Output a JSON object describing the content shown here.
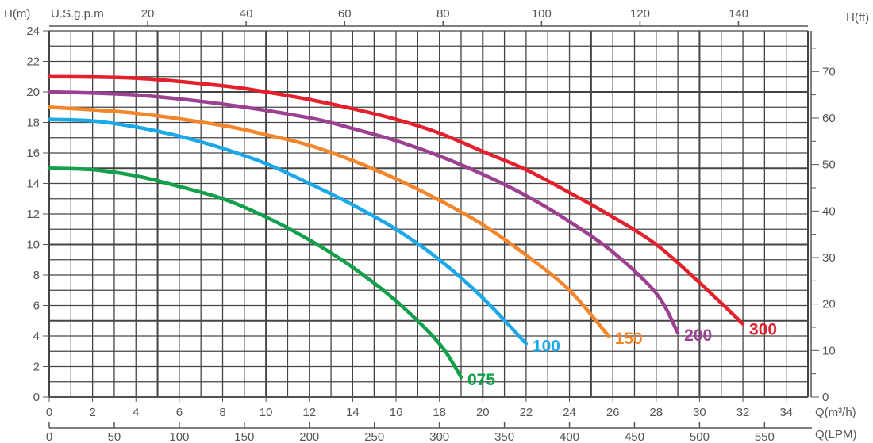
{
  "chart_data": {
    "type": "line",
    "title": "",
    "xlabel": "Q(m³/h)",
    "xlabel_lpm": "Q(LPM)",
    "xlabel_gpm": "U.S.g.p.m",
    "ylabel": "H(m)",
    "ylabel_right": "H(ft)",
    "xlim": [
      0,
      35
    ],
    "ylim": [
      0,
      24
    ],
    "grid": true,
    "x_ticks": [
      0,
      2,
      4,
      6,
      8,
      10,
      12,
      14,
      16,
      18,
      20,
      22,
      24,
      26,
      28,
      30,
      32,
      34
    ],
    "y_ticks": [
      0,
      2,
      4,
      6,
      8,
      10,
      12,
      14,
      16,
      18,
      20,
      22,
      24
    ],
    "ft_ticks": [
      0,
      10,
      20,
      30,
      40,
      50,
      60,
      70
    ],
    "gpm_ticks": [
      20,
      40,
      60,
      80,
      100,
      120,
      140
    ],
    "lpm_ticks": [
      0,
      50,
      100,
      150,
      200,
      250,
      300,
      350,
      400,
      450,
      500,
      550
    ],
    "series": [
      {
        "name": "075",
        "color": "#12a04b",
        "points": [
          [
            0,
            15
          ],
          [
            2,
            14.9
          ],
          [
            4,
            14.5
          ],
          [
            6,
            13.8
          ],
          [
            8,
            13
          ],
          [
            10,
            11.8
          ],
          [
            12,
            10.3
          ],
          [
            14,
            8.5
          ],
          [
            16,
            6.3
          ],
          [
            18,
            3.5
          ],
          [
            19,
            1.3
          ]
        ]
      },
      {
        "name": "100",
        "color": "#1ba8e8",
        "points": [
          [
            0,
            18.2
          ],
          [
            2,
            18.1
          ],
          [
            4,
            17.7
          ],
          [
            6,
            17.1
          ],
          [
            8,
            16.3
          ],
          [
            10,
            15.3
          ],
          [
            12,
            14
          ],
          [
            14,
            12.6
          ],
          [
            16,
            11
          ],
          [
            18,
            9
          ],
          [
            20,
            6.5
          ],
          [
            22,
            3.5
          ]
        ]
      },
      {
        "name": "150",
        "color": "#f3862b",
        "points": [
          [
            0,
            19
          ],
          [
            4,
            18.6
          ],
          [
            8,
            17.8
          ],
          [
            10,
            17.2
          ],
          [
            12,
            16.5
          ],
          [
            14,
            15.5
          ],
          [
            16,
            14.3
          ],
          [
            18,
            12.9
          ],
          [
            20,
            11.3
          ],
          [
            22,
            9.3
          ],
          [
            24,
            7
          ],
          [
            25.8,
            4
          ]
        ]
      },
      {
        "name": "200",
        "color": "#9c4191",
        "points": [
          [
            0,
            20
          ],
          [
            4,
            19.8
          ],
          [
            8,
            19.2
          ],
          [
            12,
            18.3
          ],
          [
            14,
            17.6
          ],
          [
            16,
            16.8
          ],
          [
            18,
            15.8
          ],
          [
            20,
            14.6
          ],
          [
            22,
            13.2
          ],
          [
            24,
            11.5
          ],
          [
            26,
            9.5
          ],
          [
            28,
            6.8
          ],
          [
            29,
            4.2
          ]
        ]
      },
      {
        "name": "300",
        "color": "#e3202b",
        "points": [
          [
            0,
            21
          ],
          [
            4,
            20.9
          ],
          [
            8,
            20.4
          ],
          [
            10,
            20
          ],
          [
            12,
            19.5
          ],
          [
            14,
            18.9
          ],
          [
            16,
            18.2
          ],
          [
            18,
            17.3
          ],
          [
            20,
            16.1
          ],
          [
            22,
            14.9
          ],
          [
            24,
            13.4
          ],
          [
            26,
            11.8
          ],
          [
            28,
            10
          ],
          [
            30,
            7.5
          ],
          [
            32,
            4.8
          ]
        ]
      }
    ]
  }
}
